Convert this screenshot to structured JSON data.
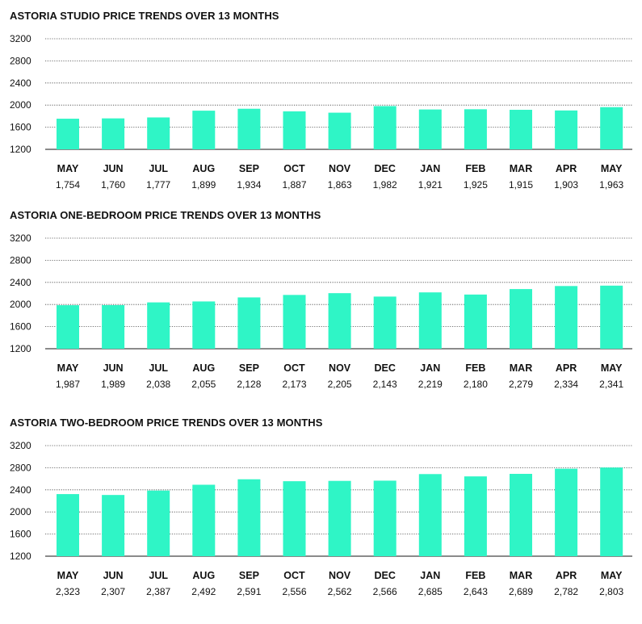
{
  "bar_color": "#2ff5c6",
  "grid_color": "#444444",
  "chart_data": [
    {
      "type": "bar",
      "title": "ASTORIA STUDIO PRICE TRENDS OVER 13 MONTHS",
      "categories": [
        "MAY",
        "JUN",
        "JUL",
        "AUG",
        "SEP",
        "OCT",
        "NOV",
        "DEC",
        "JAN",
        "FEB",
        "MAR",
        "APR",
        "MAY"
      ],
      "values": [
        1754,
        1760,
        1777,
        1899,
        1934,
        1887,
        1863,
        1982,
        1921,
        1925,
        1915,
        1903,
        1963
      ],
      "value_labels": [
        "1,754",
        "1,760",
        "1,777",
        "1,899",
        "1,934",
        "1,887",
        "1,863",
        "1,982",
        "1,921",
        "1,925",
        "1,915",
        "1,903",
        "1,963"
      ],
      "ylim": [
        1200,
        3200
      ],
      "yticks": [
        "3200",
        "2800",
        "2400",
        "2000",
        "1600",
        "1200"
      ],
      "grid": true
    },
    {
      "type": "bar",
      "title": "ASTORIA ONE-BEDROOM PRICE TRENDS OVER 13 MONTHS",
      "categories": [
        "MAY",
        "JUN",
        "JUL",
        "AUG",
        "SEP",
        "OCT",
        "NOV",
        "DEC",
        "JAN",
        "FEB",
        "MAR",
        "APR",
        "MAY"
      ],
      "values": [
        1987,
        1989,
        2038,
        2055,
        2128,
        2173,
        2205,
        2143,
        2219,
        2180,
        2279,
        2334,
        2341
      ],
      "value_labels": [
        "1,987",
        "1,989",
        "2,038",
        "2,055",
        "2,128",
        "2,173",
        "2,205",
        "2,143",
        "2,219",
        "2,180",
        "2,279",
        "2,334",
        "2,341"
      ],
      "ylim": [
        1200,
        3200
      ],
      "yticks": [
        "3200",
        "2800",
        "2400",
        "2000",
        "1600",
        "1200"
      ],
      "grid": true
    },
    {
      "type": "bar",
      "title": "ASTORIA TWO-BEDROOM PRICE TRENDS OVER 13 MONTHS",
      "categories": [
        "MAY",
        "JUN",
        "JUL",
        "AUG",
        "SEP",
        "OCT",
        "NOV",
        "DEC",
        "JAN",
        "FEB",
        "MAR",
        "APR",
        "MAY"
      ],
      "values": [
        2323,
        2307,
        2387,
        2492,
        2591,
        2556,
        2562,
        2566,
        2685,
        2643,
        2689,
        2782,
        2803
      ],
      "value_labels": [
        "2,323",
        "2,307",
        "2,387",
        "2,492",
        "2,591",
        "2,556",
        "2,562",
        "2,566",
        "2,685",
        "2,643",
        "2,689",
        "2,782",
        "2,803"
      ],
      "ylim": [
        1200,
        3200
      ],
      "yticks": [
        "3200",
        "2800",
        "2400",
        "2000",
        "1600",
        "1200"
      ],
      "grid": true
    }
  ]
}
